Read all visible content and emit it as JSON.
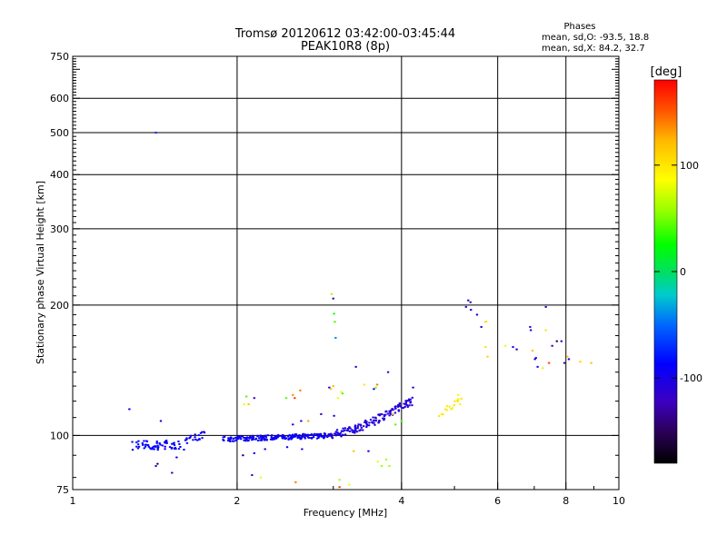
{
  "chart_data": {
    "type": "scatter",
    "title": "Tromsø 20120612 03:42:00-03:45:44",
    "subtitle": "PEAK10R8 (8p)",
    "xlabel": "Frequency [MHz]",
    "ylabel": "Stationary phase Virtual Height [km]",
    "x_scale": "log",
    "y_scale": "log",
    "xlim": [
      1,
      10
    ],
    "ylim": [
      75,
      750
    ],
    "grid": true,
    "x_ticks": [
      {
        "value": 1,
        "label": "1"
      },
      {
        "value": 2,
        "label": "2"
      },
      {
        "value": 4,
        "label": "4"
      },
      {
        "value": 6,
        "label": "6"
      },
      {
        "value": 8,
        "label": "8"
      },
      {
        "value": 10,
        "label": "10"
      }
    ],
    "x_minor_ticks": [
      3,
      5,
      7,
      9
    ],
    "y_ticks": [
      {
        "value": 75,
        "label": "75"
      },
      {
        "value": 100,
        "label": "100"
      },
      {
        "value": 200,
        "label": "200"
      },
      {
        "value": 300,
        "label": "300"
      },
      {
        "value": 400,
        "label": "400"
      },
      {
        "value": 500,
        "label": "500"
      },
      {
        "value": 600,
        "label": "600"
      },
      {
        "value": 750,
        "label": "750"
      }
    ],
    "phases_box": {
      "heading": "Phases",
      "line_o": "mean, sd,O: -93.5, 18.8",
      "line_x": "mean, sd,X:  84.2, 32.7"
    },
    "colorbar": {
      "label": "[deg]",
      "range": [
        -180,
        180
      ],
      "ticks": [
        {
          "value": 100,
          "label": "100"
        },
        {
          "value": 0,
          "label": "0"
        },
        {
          "value": -100,
          "label": "-100"
        }
      ]
    },
    "series": [
      {
        "points": [
          [
            1.27,
            115,
            -95
          ],
          [
            1.45,
            108,
            -100
          ],
          [
            1.55,
            89,
            -95
          ],
          [
            1.52,
            82,
            -110
          ],
          [
            1.42,
            85,
            -115
          ],
          [
            1.43,
            86,
            -150
          ],
          [
            1.62,
            96,
            -80
          ],
          [
            1.42,
            500,
            -80
          ],
          [
            2.08,
            123,
            40
          ],
          [
            2.06,
            118,
            80
          ],
          [
            2.1,
            118,
            120
          ],
          [
            2.15,
            122,
            -120
          ],
          [
            2.46,
            122,
            40
          ],
          [
            2.53,
            124,
            135
          ],
          [
            2.55,
            122,
            160
          ],
          [
            2.61,
            127,
            140
          ],
          [
            2.95,
            129,
            -110
          ],
          [
            3.0,
            130,
            120
          ],
          [
            3.06,
            122,
            80
          ],
          [
            3.1,
            126,
            80
          ],
          [
            3.12,
            125,
            40
          ],
          [
            2.97,
            128,
            120
          ],
          [
            3.01,
            111,
            -100
          ],
          [
            3.05,
            103,
            -100
          ],
          [
            2.98,
            212,
            60
          ],
          [
            3.0,
            207,
            -130
          ],
          [
            3.01,
            191,
            30
          ],
          [
            3.02,
            183,
            40
          ],
          [
            3.03,
            168,
            -40
          ],
          [
            3.3,
            144,
            -120
          ],
          [
            3.42,
            131,
            100
          ],
          [
            3.59,
            129,
            50
          ],
          [
            3.61,
            131,
            140
          ],
          [
            3.56,
            128,
            -100
          ],
          [
            3.78,
            140,
            -120
          ],
          [
            3.85,
            112,
            120
          ],
          [
            3.9,
            106,
            40
          ],
          [
            4.0,
            108,
            40
          ],
          [
            4.2,
            129,
            -110
          ],
          [
            3.27,
            92,
            120
          ],
          [
            3.48,
            92,
            -100
          ],
          [
            3.62,
            87,
            80
          ],
          [
            3.68,
            85,
            60
          ],
          [
            3.75,
            88,
            60
          ],
          [
            3.8,
            85,
            60
          ],
          [
            2.05,
            90,
            -150
          ],
          [
            2.13,
            81,
            -120
          ],
          [
            2.15,
            91,
            -100
          ],
          [
            2.21,
            80,
            80
          ],
          [
            2.25,
            93,
            -110
          ],
          [
            2.47,
            94,
            -100
          ],
          [
            2.63,
            93,
            -110
          ],
          [
            2.56,
            78,
            140
          ],
          [
            3.08,
            76,
            160
          ],
          [
            3.08,
            79,
            60
          ],
          [
            3.21,
            77,
            80
          ],
          [
            2.53,
            106,
            -105
          ],
          [
            2.7,
            108,
            130
          ],
          [
            2.85,
            112,
            -120
          ],
          [
            2.62,
            108,
            -120
          ],
          [
            4.93,
            115,
            70
          ],
          [
            5.08,
            124,
            90
          ],
          [
            5.12,
            118,
            95
          ],
          [
            5.3,
            205,
            -110
          ],
          [
            5.35,
            203,
            -120
          ],
          [
            5.25,
            198,
            -120
          ],
          [
            5.36,
            195,
            -110
          ],
          [
            5.5,
            190,
            -105
          ],
          [
            5.6,
            178,
            -115
          ],
          [
            5.7,
            183,
            110
          ],
          [
            5.72,
            183,
            100
          ],
          [
            5.7,
            160,
            100
          ],
          [
            5.75,
            152,
            110
          ],
          [
            6.2,
            161,
            80
          ],
          [
            6.4,
            160,
            -110
          ],
          [
            6.5,
            158,
            -100
          ],
          [
            6.88,
            178,
            -120
          ],
          [
            6.9,
            175,
            -110
          ],
          [
            6.95,
            157,
            120
          ],
          [
            7.02,
            150,
            -110
          ],
          [
            7.05,
            151,
            -80
          ],
          [
            7.1,
            144,
            -100
          ],
          [
            7.25,
            143,
            100
          ],
          [
            7.35,
            198,
            -120
          ],
          [
            7.35,
            175,
            100
          ],
          [
            7.45,
            147,
            160
          ],
          [
            7.55,
            161,
            -120
          ],
          [
            7.7,
            165,
            -150
          ],
          [
            7.85,
            165,
            -115
          ],
          [
            7.95,
            147,
            -130
          ],
          [
            8.05,
            152,
            120
          ],
          [
            8.1,
            150,
            -110
          ],
          [
            8.5,
            148,
            110
          ],
          [
            8.9,
            147,
            120
          ]
        ]
      }
    ],
    "clusters": [
      {
        "x1": 1.3,
        "x2": 1.58,
        "y1": 95,
        "y2": 95,
        "jx": 0.012,
        "jy": 0.022,
        "n": 60,
        "c1": -95,
        "c2": -80
      },
      {
        "x1": 1.6,
        "x2": 1.75,
        "y1": 97,
        "y2": 101,
        "jx": 0.008,
        "jy": 0.018,
        "n": 20,
        "c1": -100,
        "c2": -85
      },
      {
        "x1": 1.9,
        "x2": 2.95,
        "y1": 98,
        "y2": 100,
        "jx": 0.01,
        "jy": 0.012,
        "n": 190,
        "c1": -100,
        "c2": -85
      },
      {
        "x1": 2.95,
        "x2": 3.35,
        "y1": 100,
        "y2": 104,
        "jx": 0.01,
        "jy": 0.015,
        "n": 55,
        "c1": -110,
        "c2": -95
      },
      {
        "x1": 3.35,
        "x2": 4.2,
        "y1": 104,
        "y2": 120,
        "jx": 0.008,
        "jy": 0.018,
        "n": 95,
        "c1": -115,
        "c2": -100
      },
      {
        "x1": 4.7,
        "x2": 5.15,
        "y1": 111,
        "y2": 123,
        "jx": 0.006,
        "jy": 0.012,
        "n": 14,
        "c1": 90,
        "c2": 105
      }
    ]
  }
}
